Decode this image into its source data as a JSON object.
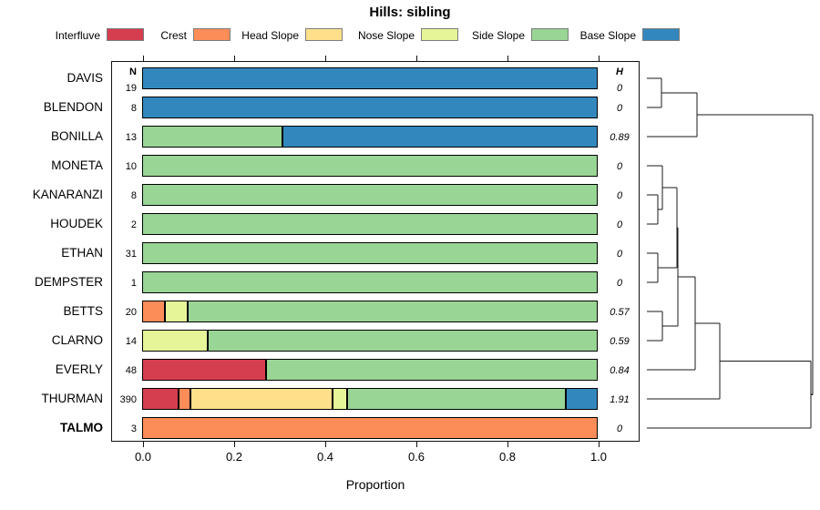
{
  "title": "Hills: sibling",
  "legend": {
    "items": [
      {
        "label": "Interfluve",
        "color": "#D53E4F"
      },
      {
        "label": "Crest",
        "color": "#FC8D59"
      },
      {
        "label": "Head Slope",
        "color": "#FEE08B"
      },
      {
        "label": "Nose Slope",
        "color": "#E6F598"
      },
      {
        "label": "Side Slope",
        "color": "#99D594"
      },
      {
        "label": "Base Slope",
        "color": "#3288BD"
      }
    ]
  },
  "columns": {
    "n_header": "N",
    "h_header": "H"
  },
  "x_axis": {
    "label": "Proportion",
    "ticks": [
      "0.0",
      "0.2",
      "0.4",
      "0.6",
      "0.8",
      "1.0"
    ]
  },
  "chart_data": {
    "type": "bar",
    "subtype": "horizontal-stacked-proportion-with-dendrogram",
    "title": "Hills: sibling",
    "xlabel": "Proportion",
    "xlim": [
      0,
      1
    ],
    "grid": false,
    "legend_position": "top",
    "categories": [
      "Interfluve",
      "Crest",
      "Head Slope",
      "Nose Slope",
      "Side Slope",
      "Base Slope"
    ],
    "colors": [
      "#D53E4F",
      "#FC8D59",
      "#FEE08B",
      "#E6F598",
      "#99D594",
      "#3288BD"
    ],
    "rows": [
      {
        "name": "DAVIS",
        "n": 19,
        "h": "0",
        "bold": false,
        "proportions": [
          0,
          0,
          0,
          0,
          0,
          1
        ]
      },
      {
        "name": "BLENDON",
        "n": 8,
        "h": "0",
        "bold": false,
        "proportions": [
          0,
          0,
          0,
          0,
          0,
          1
        ]
      },
      {
        "name": "BONILLA",
        "n": 13,
        "h": "0.89",
        "bold": false,
        "proportions": [
          0,
          0,
          0,
          0,
          0.308,
          0.692
        ]
      },
      {
        "name": "MONETA",
        "n": 10,
        "h": "0",
        "bold": false,
        "proportions": [
          0,
          0,
          0,
          0,
          1,
          0
        ]
      },
      {
        "name": "KANARANZI",
        "n": 8,
        "h": "0",
        "bold": false,
        "proportions": [
          0,
          0,
          0,
          0,
          1,
          0
        ]
      },
      {
        "name": "HOUDEK",
        "n": 2,
        "h": "0",
        "bold": false,
        "proportions": [
          0,
          0,
          0,
          0,
          1,
          0
        ]
      },
      {
        "name": "ETHAN",
        "n": 31,
        "h": "0",
        "bold": false,
        "proportions": [
          0,
          0,
          0,
          0,
          1,
          0
        ]
      },
      {
        "name": "DEMPSTER",
        "n": 1,
        "h": "0",
        "bold": false,
        "proportions": [
          0,
          0,
          0,
          0,
          1,
          0
        ]
      },
      {
        "name": "BETTS",
        "n": 20,
        "h": "0.57",
        "bold": false,
        "proportions": [
          0,
          0.05,
          0,
          0.05,
          0.9,
          0
        ]
      },
      {
        "name": "CLARNO",
        "n": 14,
        "h": "0.59",
        "bold": false,
        "proportions": [
          0,
          0,
          0,
          0.143,
          0.857,
          0
        ]
      },
      {
        "name": "EVERLY",
        "n": 48,
        "h": "0.84",
        "bold": false,
        "proportions": [
          0.271,
          0,
          0,
          0,
          0.729,
          0
        ]
      },
      {
        "name": "THURMAN",
        "n": 390,
        "h": "1.91",
        "bold": false,
        "proportions": [
          0.079,
          0.026,
          0.312,
          0.032,
          0.48,
          0.071
        ]
      },
      {
        "name": "TALMO",
        "n": 3,
        "h": "0",
        "bold": true,
        "proportions": [
          0,
          1,
          0,
          0,
          0,
          0
        ]
      }
    ],
    "dendrogram": {
      "orientation": "right",
      "tree": {
        "h": 1.0,
        "children": [
          {
            "h": 0.302,
            "children": [
              {
                "h": 0.088,
                "children": [
                  "DAVIS",
                  "BLENDON"
                ]
              },
              "BONILLA"
            ]
          },
          {
            "h": 0.989,
            "children": [
              {
                "h": 0.44,
                "children": [
                  {
                    "h": 0.291,
                    "children": [
                      {
                        "h": 0.187,
                        "children": [
                          {
                            "h": 0.181,
                            "children": [
                              {
                                "h": 0.093,
                                "children": [
                                  "MONETA",
                                  {
                                    "h": 0.066,
                                    "children": [
                                      "KANARANZI",
                                      "HOUDEK"
                                    ]
                                  }
                                ]
                              },
                              {
                                "h": 0.066,
                                "children": [
                                  "ETHAN",
                                  "DEMPSTER"
                                ]
                              }
                            ]
                          },
                          {
                            "h": 0.093,
                            "children": [
                              "BETTS",
                              "CLARNO"
                            ]
                          }
                        ]
                      },
                      "EVERLY"
                    ]
                  },
                  "THURMAN"
                ]
              },
              "TALMO"
            ]
          }
        ]
      }
    }
  }
}
